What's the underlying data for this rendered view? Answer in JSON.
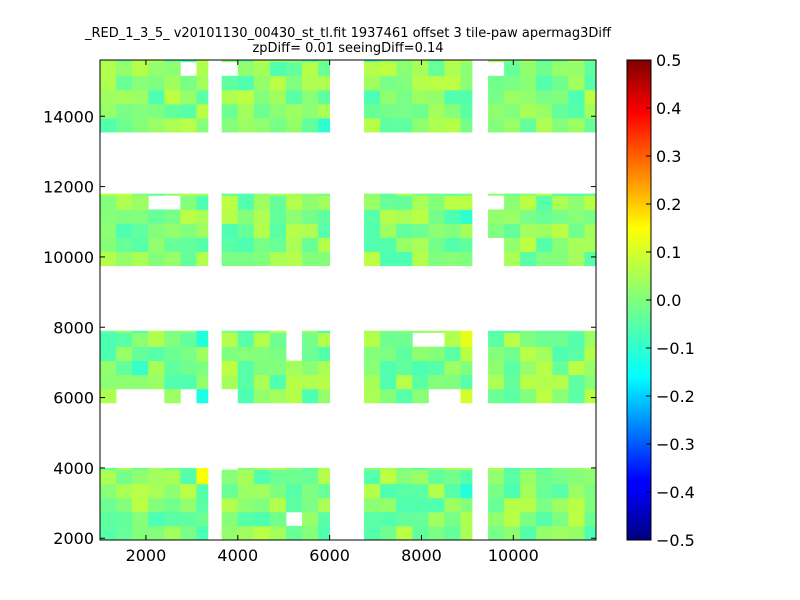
{
  "chart_data": {
    "type": "heatmap",
    "title": "_RED_1_3_5_ v20101130_00430_st_tl.fit 1937461 offset 3 tile-paw apermag3Diff",
    "subtitle": "zpDiff= 0.01 seeingDiff=0.14",
    "xlabel": "",
    "ylabel": "",
    "xlim": [
      1000,
      11800
    ],
    "ylim": [
      1950,
      15600
    ],
    "x_ticks": [
      2000,
      4000,
      6000,
      8000,
      10000
    ],
    "x_tick_labels": [
      "2000",
      "4000",
      "6000",
      "8000",
      "10000"
    ],
    "y_ticks": [
      2000,
      4000,
      6000,
      8000,
      10000,
      12000,
      14000
    ],
    "y_tick_labels": [
      "2000",
      "4000",
      "6000",
      "8000",
      "10000",
      "12000",
      "14000"
    ],
    "colorbar": {
      "colormap": "jet",
      "range": [
        -0.5,
        0.5
      ],
      "ticks": [
        0.5,
        0.4,
        0.3,
        0.2,
        0.1,
        0.0,
        -0.1,
        -0.2,
        -0.3,
        -0.4,
        -0.5
      ],
      "tick_labels": [
        "0.5",
        "0.4",
        "0.3",
        "0.2",
        "0.1",
        "0.0",
        "−0.1",
        "−0.2",
        "−0.3",
        "−0.4",
        "−0.5"
      ]
    },
    "cell_size": [
      350,
      400
    ],
    "x_blocks": [
      [
        1000,
        3350
      ],
      [
        3650,
        6000
      ],
      [
        6750,
        9100
      ],
      [
        9450,
        11800
      ]
    ],
    "y_blocks": [
      [
        1950,
        4000
      ],
      [
        5850,
        7900
      ],
      [
        9750,
        11800
      ],
      [
        13550,
        15600
      ]
    ],
    "missing_cells": [
      {
        "x": 1700,
        "y": 6150
      },
      {
        "x": 2050,
        "y": 6150
      },
      {
        "x": 2400,
        "y": 11400
      },
      {
        "x": 3000,
        "y": 15200
      },
      {
        "x": 3000,
        "y": 5950
      },
      {
        "x": 5100,
        "y": 7350
      },
      {
        "x": 5100,
        "y": 7700
      },
      {
        "x": 5100,
        "y": 2700
      },
      {
        "x": 8150,
        "y": 7550
      },
      {
        "x": 9450,
        "y": 10150
      },
      {
        "x": 9450,
        "y": 11400
      },
      {
        "x": 9450,
        "y": 15200
      },
      {
        "x": 8500,
        "y": 5950
      },
      {
        "x": 3650,
        "y": 15200
      },
      {
        "x": 3650,
        "y": 4000
      },
      {
        "x": 3650,
        "y": 6150
      }
    ],
    "highlight_cells": [
      {
        "x": 3300,
        "y": 3950,
        "v": 0.12
      },
      {
        "x": 8900,
        "y": 7750,
        "v": 0.1
      },
      {
        "x": 8850,
        "y": 5850,
        "v": 0.08
      },
      {
        "x": 5900,
        "y": 13600,
        "v": -0.08
      },
      {
        "x": 3150,
        "y": 6000,
        "v": -0.1
      },
      {
        "x": 3150,
        "y": 7800,
        "v": -0.09
      },
      {
        "x": 9000,
        "y": 3500,
        "v": -0.09
      },
      {
        "x": 9000,
        "y": 11000,
        "v": -0.08
      },
      {
        "x": 1800,
        "y": 6700,
        "v": -0.07
      }
    ],
    "typical_value_range": [
      -0.05,
      0.06
    ],
    "grid": false
  }
}
